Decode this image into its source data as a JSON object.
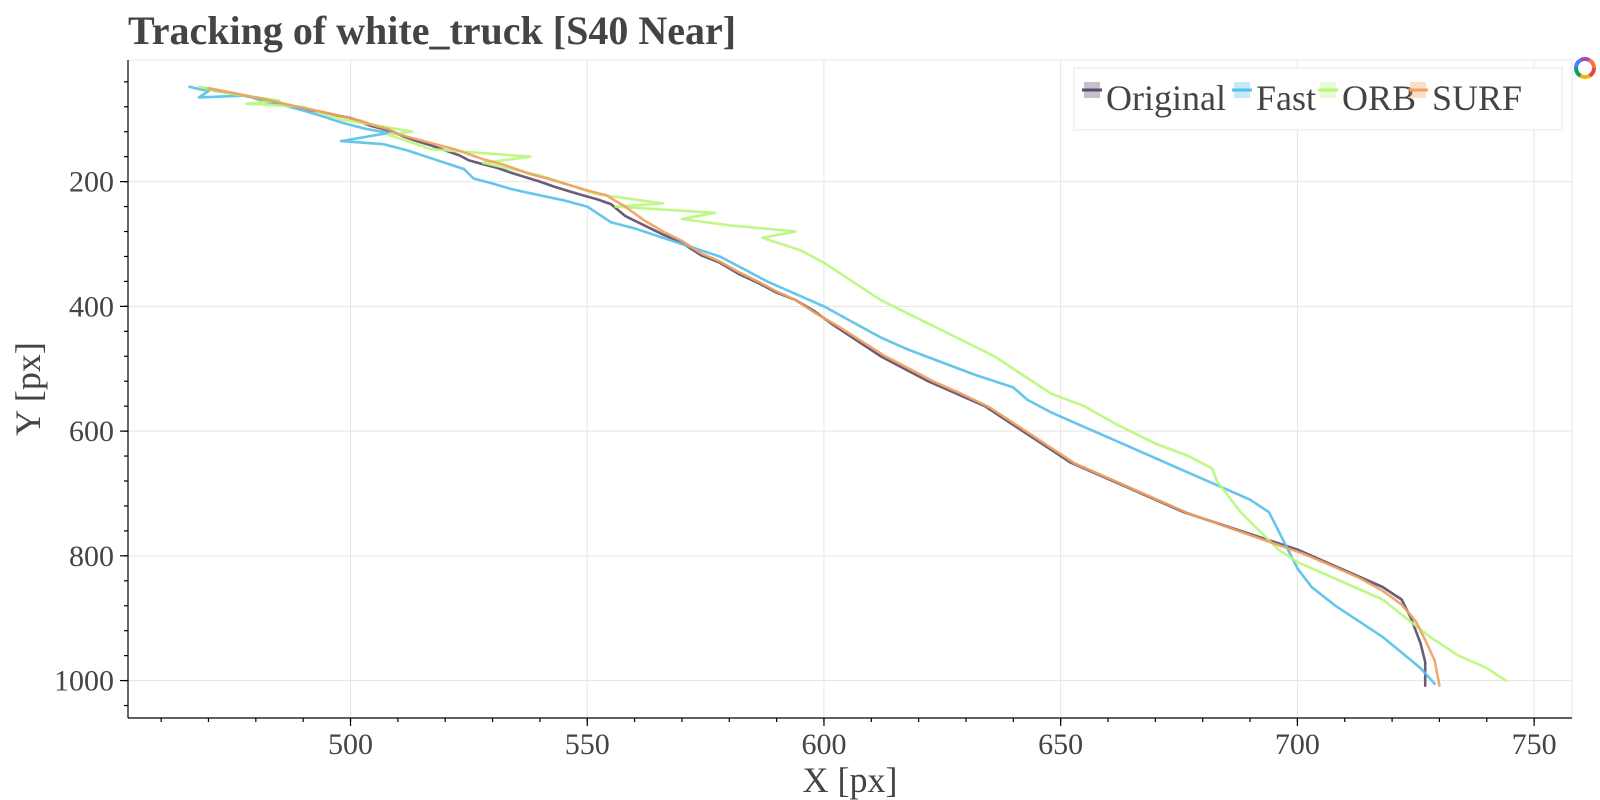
{
  "chart_data": {
    "type": "line",
    "title": "Tracking of white_truck [S40 Near]",
    "xlabel": "X [px]",
    "ylabel": "Y [px]",
    "xlim": [
      453,
      758
    ],
    "ylim": [
      1060,
      5
    ],
    "y_axis_inverted": true,
    "x_ticks": [
      500,
      550,
      600,
      650,
      700,
      750
    ],
    "y_ticks": [
      200,
      400,
      600,
      800,
      1000
    ],
    "grid": true,
    "legend_position": "top-right",
    "series": [
      {
        "name": "Original",
        "color": "#5b4a6b",
        "points": [
          [
            469,
            50
          ],
          [
            472,
            55
          ],
          [
            476,
            60
          ],
          [
            480,
            66
          ],
          [
            484,
            73
          ],
          [
            488,
            80
          ],
          [
            492,
            86
          ],
          [
            496,
            92
          ],
          [
            500,
            98
          ],
          [
            502,
            104
          ],
          [
            504,
            110
          ],
          [
            506,
            114
          ],
          [
            509,
            120
          ],
          [
            511,
            127
          ],
          [
            514,
            135
          ],
          [
            517,
            142
          ],
          [
            520,
            150
          ],
          [
            523,
            158
          ],
          [
            525,
            166
          ],
          [
            528,
            172
          ],
          [
            531,
            178
          ],
          [
            534,
            186
          ],
          [
            537,
            193
          ],
          [
            540,
            200
          ],
          [
            543,
            208
          ],
          [
            546,
            215
          ],
          [
            549,
            222
          ],
          [
            552,
            228
          ],
          [
            555,
            236
          ],
          [
            558,
            255
          ],
          [
            562,
            270
          ],
          [
            566,
            285
          ],
          [
            570,
            298
          ],
          [
            574,
            318
          ],
          [
            578,
            330
          ],
          [
            582,
            348
          ],
          [
            586,
            362
          ],
          [
            590,
            378
          ],
          [
            594,
            390
          ],
          [
            598,
            408
          ],
          [
            602,
            430
          ],
          [
            607,
            455
          ],
          [
            612,
            480
          ],
          [
            617,
            500
          ],
          [
            622,
            520
          ],
          [
            628,
            540
          ],
          [
            634,
            560
          ],
          [
            640,
            590
          ],
          [
            646,
            620
          ],
          [
            652,
            650
          ],
          [
            658,
            670
          ],
          [
            664,
            690
          ],
          [
            670,
            710
          ],
          [
            676,
            730
          ],
          [
            682,
            745
          ],
          [
            688,
            760
          ],
          [
            694,
            775
          ],
          [
            700,
            790
          ],
          [
            706,
            810
          ],
          [
            712,
            830
          ],
          [
            718,
            850
          ],
          [
            722,
            870
          ],
          [
            724,
            900
          ],
          [
            726,
            940
          ],
          [
            727,
            970
          ],
          [
            727,
            1008
          ]
        ]
      },
      {
        "name": "Fast",
        "color": "#55c0e8",
        "points": [
          [
            466,
            48
          ],
          [
            470,
            55
          ],
          [
            468,
            65
          ],
          [
            478,
            62
          ],
          [
            482,
            72
          ],
          [
            486,
            78
          ],
          [
            490,
            86
          ],
          [
            494,
            95
          ],
          [
            498,
            105
          ],
          [
            503,
            115
          ],
          [
            508,
            122
          ],
          [
            498,
            135
          ],
          [
            507,
            140
          ],
          [
            512,
            150
          ],
          [
            516,
            160
          ],
          [
            520,
            170
          ],
          [
            524,
            180
          ],
          [
            526,
            195
          ],
          [
            530,
            203
          ],
          [
            534,
            212
          ],
          [
            540,
            222
          ],
          [
            545,
            230
          ],
          [
            550,
            240
          ],
          [
            555,
            265
          ],
          [
            560,
            275
          ],
          [
            566,
            290
          ],
          [
            572,
            305
          ],
          [
            578,
            320
          ],
          [
            583,
            340
          ],
          [
            588,
            360
          ],
          [
            594,
            380
          ],
          [
            600,
            400
          ],
          [
            606,
            425
          ],
          [
            612,
            450
          ],
          [
            618,
            470
          ],
          [
            625,
            490
          ],
          [
            632,
            510
          ],
          [
            640,
            530
          ],
          [
            643,
            550
          ],
          [
            648,
            570
          ],
          [
            654,
            590
          ],
          [
            660,
            610
          ],
          [
            666,
            630
          ],
          [
            672,
            650
          ],
          [
            678,
            670
          ],
          [
            684,
            690
          ],
          [
            690,
            710
          ],
          [
            694,
            730
          ],
          [
            696,
            760
          ],
          [
            698,
            790
          ],
          [
            700,
            820
          ],
          [
            703,
            850
          ],
          [
            708,
            880
          ],
          [
            713,
            905
          ],
          [
            718,
            930
          ],
          [
            722,
            955
          ],
          [
            726,
            980
          ],
          [
            729,
            1005
          ]
        ]
      },
      {
        "name": "ORB",
        "color": "#b8f77a",
        "points": [
          [
            468,
            48
          ],
          [
            474,
            58
          ],
          [
            485,
            70
          ],
          [
            478,
            75
          ],
          [
            490,
            80
          ],
          [
            494,
            90
          ],
          [
            498,
            100
          ],
          [
            504,
            108
          ],
          [
            513,
            120
          ],
          [
            508,
            125
          ],
          [
            512,
            135
          ],
          [
            517,
            148
          ],
          [
            538,
            160
          ],
          [
            528,
            170
          ],
          [
            534,
            180
          ],
          [
            540,
            190
          ],
          [
            546,
            205
          ],
          [
            552,
            220
          ],
          [
            566,
            235
          ],
          [
            556,
            240
          ],
          [
            577,
            250
          ],
          [
            570,
            260
          ],
          [
            580,
            270
          ],
          [
            594,
            280
          ],
          [
            587,
            290
          ],
          [
            595,
            310
          ],
          [
            600,
            330
          ],
          [
            606,
            360
          ],
          [
            612,
            390
          ],
          [
            620,
            420
          ],
          [
            628,
            450
          ],
          [
            636,
            480
          ],
          [
            642,
            510
          ],
          [
            648,
            540
          ],
          [
            655,
            560
          ],
          [
            662,
            590
          ],
          [
            670,
            620
          ],
          [
            677,
            640
          ],
          [
            682,
            660
          ],
          [
            683,
            680
          ],
          [
            685,
            700
          ],
          [
            688,
            730
          ],
          [
            692,
            760
          ],
          [
            696,
            790
          ],
          [
            700,
            810
          ],
          [
            706,
            830
          ],
          [
            712,
            850
          ],
          [
            718,
            870
          ],
          [
            723,
            900
          ],
          [
            728,
            930
          ],
          [
            734,
            960
          ],
          [
            740,
            980
          ],
          [
            744,
            1000
          ]
        ]
      },
      {
        "name": "SURF",
        "color": "#f0a060",
        "points": [
          [
            470,
            50
          ],
          [
            474,
            56
          ],
          [
            478,
            62
          ],
          [
            482,
            68
          ],
          [
            486,
            75
          ],
          [
            490,
            82
          ],
          [
            494,
            88
          ],
          [
            498,
            95
          ],
          [
            502,
            102
          ],
          [
            505,
            110
          ],
          [
            508,
            116
          ],
          [
            510,
            124
          ],
          [
            514,
            132
          ],
          [
            518,
            140
          ],
          [
            522,
            148
          ],
          [
            525,
            156
          ],
          [
            528,
            164
          ],
          [
            532,
            172
          ],
          [
            535,
            180
          ],
          [
            538,
            188
          ],
          [
            542,
            196
          ],
          [
            546,
            205
          ],
          [
            550,
            214
          ],
          [
            554,
            222
          ],
          [
            558,
            240
          ],
          [
            562,
            262
          ],
          [
            566,
            280
          ],
          [
            570,
            295
          ],
          [
            574,
            315
          ],
          [
            578,
            328
          ],
          [
            582,
            345
          ],
          [
            586,
            360
          ],
          [
            590,
            376
          ],
          [
            594,
            390
          ],
          [
            598,
            410
          ],
          [
            603,
            432
          ],
          [
            608,
            456
          ],
          [
            613,
            480
          ],
          [
            618,
            500
          ],
          [
            623,
            520
          ],
          [
            629,
            540
          ],
          [
            635,
            562
          ],
          [
            641,
            592
          ],
          [
            647,
            622
          ],
          [
            653,
            652
          ],
          [
            659,
            672
          ],
          [
            665,
            692
          ],
          [
            671,
            712
          ],
          [
            677,
            732
          ],
          [
            683,
            748
          ],
          [
            689,
            764
          ],
          [
            695,
            780
          ],
          [
            701,
            796
          ],
          [
            707,
            815
          ],
          [
            713,
            835
          ],
          [
            718,
            856
          ],
          [
            722,
            878
          ],
          [
            725,
            905
          ],
          [
            727,
            935
          ],
          [
            729,
            968
          ],
          [
            730,
            1008
          ]
        ]
      }
    ],
    "legend_entries": [
      "Original",
      "Fast",
      "ORB",
      "SURF"
    ]
  }
}
